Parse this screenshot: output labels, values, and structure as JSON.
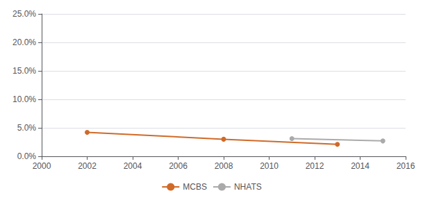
{
  "chart_data": {
    "type": "line",
    "series": [
      {
        "name": "MCBS",
        "color": "#D06A28",
        "x": [
          2002,
          2008,
          2013
        ],
        "values": [
          0.042,
          0.03,
          0.021
        ]
      },
      {
        "name": "NHATS",
        "color": "#aaaaaa",
        "x": [
          2011,
          2015
        ],
        "values": [
          0.031,
          0.027
        ]
      }
    ],
    "xlim": [
      2000,
      2016
    ],
    "xticks": [
      2000,
      2002,
      2004,
      2006,
      2008,
      2010,
      2012,
      2014,
      2016
    ],
    "ylim": [
      0.0,
      0.25
    ],
    "yticks": [
      {
        "value": 0.0,
        "label": "0.0%"
      },
      {
        "value": 0.05,
        "label": "5.0%"
      },
      {
        "value": 0.1,
        "label": "10.0%"
      },
      {
        "value": 0.15,
        "label": "15.0%"
      },
      {
        "value": 0.2,
        "label": "20.0%"
      },
      {
        "value": 0.25,
        "label": "25.0%"
      }
    ],
    "grid": true,
    "legend": "bottom",
    "marker": "circle",
    "line_style": "solid"
  }
}
